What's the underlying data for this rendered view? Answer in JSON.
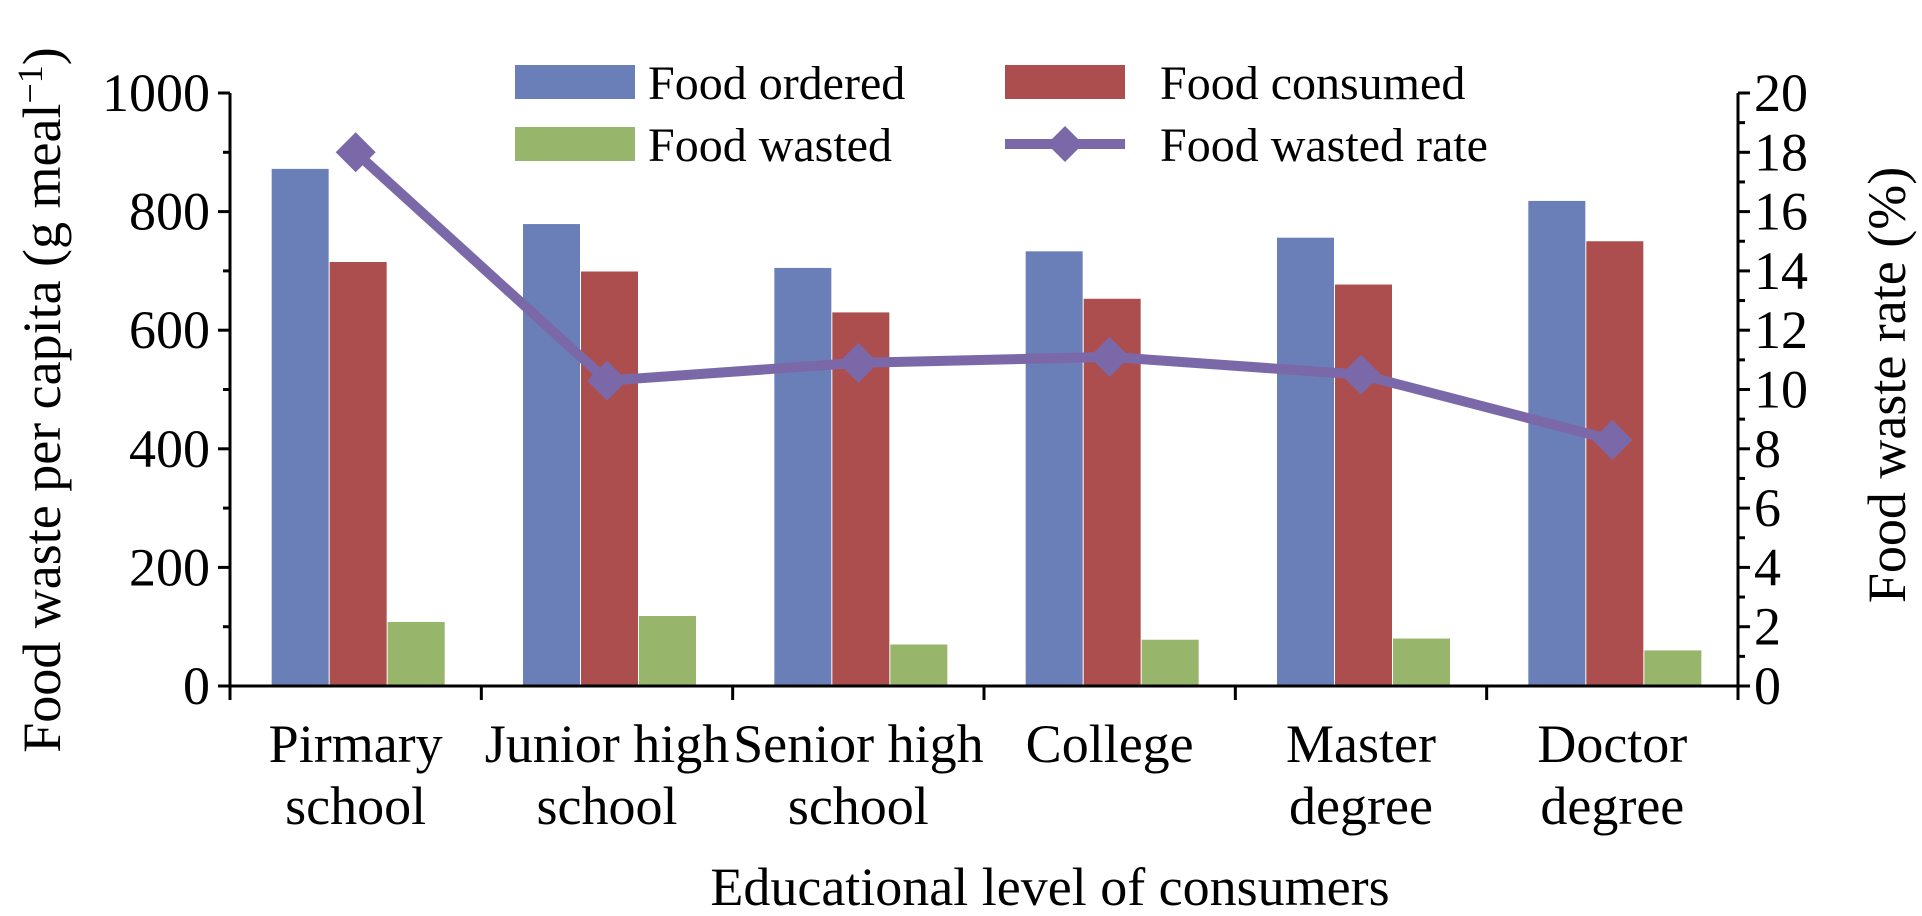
{
  "chart_data": {
    "type": "bar",
    "xlabel": "Educational level of consumers",
    "ylabel": "Food waste per capita (g meal",
    "ylabel_sup": "−1",
    "ylabel_close": ")",
    "y2label": "Food waste rate (%)",
    "ylim": [
      0,
      1000
    ],
    "y2lim": [
      0,
      20
    ],
    "yticks": [
      0,
      200,
      400,
      600,
      800,
      1000
    ],
    "y2ticks": [
      0,
      2,
      4,
      6,
      8,
      10,
      12,
      14,
      16,
      18,
      20
    ],
    "categories": [
      [
        "Pirmary",
        "school"
      ],
      [
        "Junior high",
        "school"
      ],
      [
        "Senior high",
        "school"
      ],
      [
        "College"
      ],
      [
        "Master",
        "degree"
      ],
      [
        "Doctor",
        "degree"
      ]
    ],
    "series": [
      {
        "name": "Food ordered",
        "type": "bar",
        "axis": "left",
        "color": "#6a7fb8",
        "values": [
          872,
          779,
          705,
          733,
          756,
          818
        ]
      },
      {
        "name": "Food consumed",
        "type": "bar",
        "axis": "left",
        "color": "#ad4e4e",
        "values": [
          715,
          699,
          630,
          653,
          677,
          750
        ]
      },
      {
        "name": "Food wasted",
        "type": "bar",
        "axis": "left",
        "color": "#97b56b",
        "values": [
          108,
          118,
          70,
          78,
          80,
          60
        ]
      },
      {
        "name": "Food wasted rate",
        "type": "line",
        "axis": "right",
        "color": "#7b68a8",
        "values": [
          18.0,
          10.3,
          10.9,
          11.1,
          10.5,
          8.3
        ]
      }
    ],
    "legend_position": "top",
    "grid": false
  }
}
